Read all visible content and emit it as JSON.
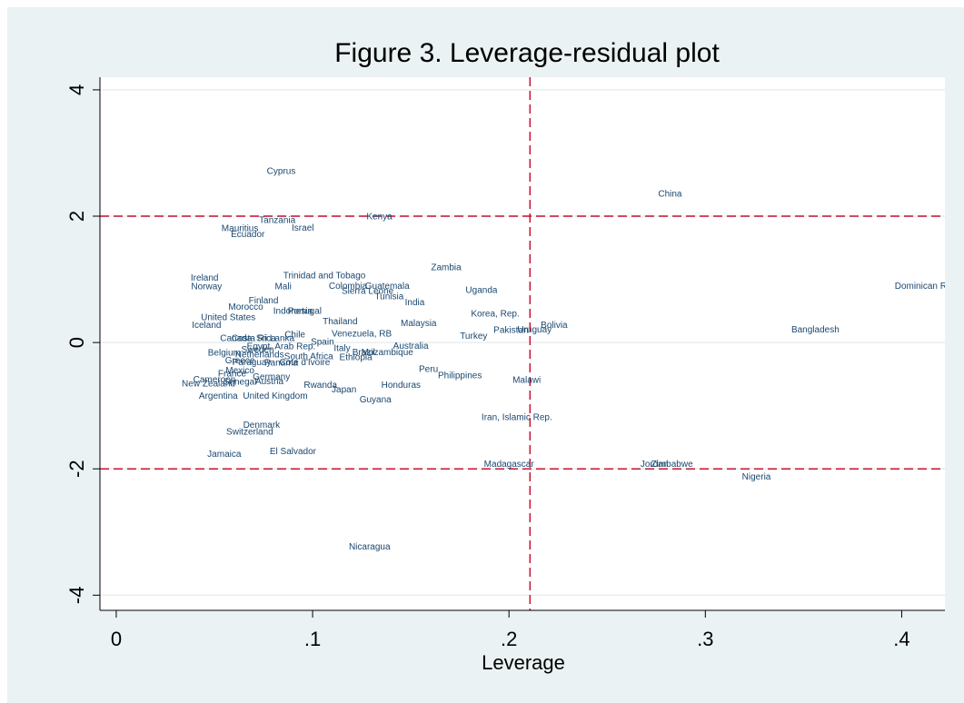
{
  "chart_data": {
    "type": "scatter",
    "title": "Figure 3. Leverage-residual plot",
    "x_label": "Leverage",
    "labels": [
      "Cyprus",
      "China",
      "Tanzania",
      "Kenya",
      "Israel",
      "Mauritius",
      "Ecuador",
      "Zambia",
      "Dominican Republic",
      "Ireland",
      "Norway",
      "Trinidad and Tobago",
      "Mali",
      "Colombia",
      "Guatemala",
      "Sierra Leone",
      "Tunisia",
      "Uganda",
      "India",
      "Finland",
      "Morocco",
      "Indonesia",
      "Portugal",
      "Korea, Rep.",
      "United States",
      "Thailand",
      "Malaysia",
      "Bolivia",
      "Iceland",
      "Pakistan",
      "Uruguay",
      "Bangladesh",
      "Turkey",
      "Venezuela, RB",
      "Chile",
      "Canada",
      "Costa Rica",
      "Sri Lanka",
      "Spain",
      "Egypt, Arab Rep.",
      "Sweden",
      "Italy",
      "Australia",
      "Brazil",
      "Mozambique",
      "Ethiopia",
      "South Africa",
      "Belgium",
      "Netherlands",
      "Greece",
      "Paraguay",
      "Panama",
      "Cote d'Ivoire",
      "Peru",
      "Mexico",
      "Philippines",
      "France",
      "Germany",
      "Cameroon",
      "Senegal",
      "Austria",
      "Malawi",
      "New Zealand",
      "Rwanda",
      "Honduras",
      "Japan",
      "Argentina",
      "United Kingdom",
      "Guyana",
      "Iran, Islamic Rep.",
      "Denmark",
      "Switzerland",
      "El Salvador",
      "Jamaica",
      "Madagascar",
      "Jordan",
      "Zimbabwe",
      "Nigeria",
      "Nicaragua"
    ],
    "x": [
      0.084,
      0.282,
      0.082,
      0.134,
      0.095,
      0.063,
      0.067,
      0.168,
      0.417,
      0.045,
      0.046,
      0.106,
      0.085,
      0.118,
      0.138,
      0.128,
      0.139,
      0.186,
      0.152,
      0.075,
      0.066,
      0.09,
      0.096,
      0.193,
      0.057,
      0.114,
      0.154,
      0.223,
      0.046,
      0.201,
      0.213,
      0.356,
      0.182,
      0.125,
      0.091,
      0.061,
      0.07,
      0.081,
      0.105,
      0.084,
      0.072,
      0.115,
      0.15,
      0.126,
      0.138,
      0.122,
      0.098,
      0.055,
      0.073,
      0.063,
      0.069,
      0.084,
      0.096,
      0.159,
      0.063,
      0.175,
      0.059,
      0.079,
      0.05,
      0.063,
      0.078,
      0.209,
      0.047,
      0.104,
      0.145,
      0.116,
      0.052,
      0.081,
      0.132,
      0.204,
      0.074,
      0.068,
      0.09,
      0.055,
      0.2,
      0.274,
      0.283,
      0.326,
      0.129
    ],
    "values": [
      2.71,
      2.35,
      1.93,
      1.99,
      1.81,
      1.8,
      1.71,
      1.18,
      0.89,
      1.02,
      0.88,
      1.05,
      0.88,
      0.89,
      0.89,
      0.81,
      0.72,
      0.82,
      0.63,
      0.66,
      0.56,
      0.49,
      0.49,
      0.45,
      0.39,
      0.33,
      0.3,
      0.27,
      0.27,
      0.19,
      0.2,
      0.2,
      0.1,
      0.13,
      0.12,
      0.06,
      0.06,
      0.06,
      0.0,
      -0.07,
      -0.12,
      -0.1,
      -0.06,
      -0.16,
      -0.16,
      -0.24,
      -0.23,
      -0.17,
      -0.2,
      -0.29,
      -0.32,
      -0.33,
      -0.32,
      -0.43,
      -0.45,
      -0.53,
      -0.5,
      -0.55,
      -0.59,
      -0.63,
      -0.62,
      -0.6,
      -0.66,
      -0.68,
      -0.68,
      -0.75,
      -0.85,
      -0.85,
      -0.91,
      -1.19,
      -1.31,
      -1.42,
      -1.73,
      -1.77,
      -1.93,
      -1.93,
      -1.93,
      -2.13,
      -3.24
    ],
    "color": "#1a476f",
    "xlim": [
      -0.0083,
      0.422
    ],
    "ylim": [
      -4.24,
      4.2
    ],
    "xticks": [
      0,
      {
        "value": 0.1,
        "label": ".1"
      },
      {
        "value": 0.2,
        "label": ".2"
      },
      {
        "value": 0.3,
        "label": ".3"
      },
      {
        "value": 0.4,
        "label": ".4"
      }
    ],
    "yticks": [
      -4,
      -2,
      0,
      2,
      4
    ],
    "grid": true,
    "reference_x": [
      0.2107
    ],
    "reference_y": [
      -2,
      2
    ],
    "reference_color": "#c8102e"
  }
}
